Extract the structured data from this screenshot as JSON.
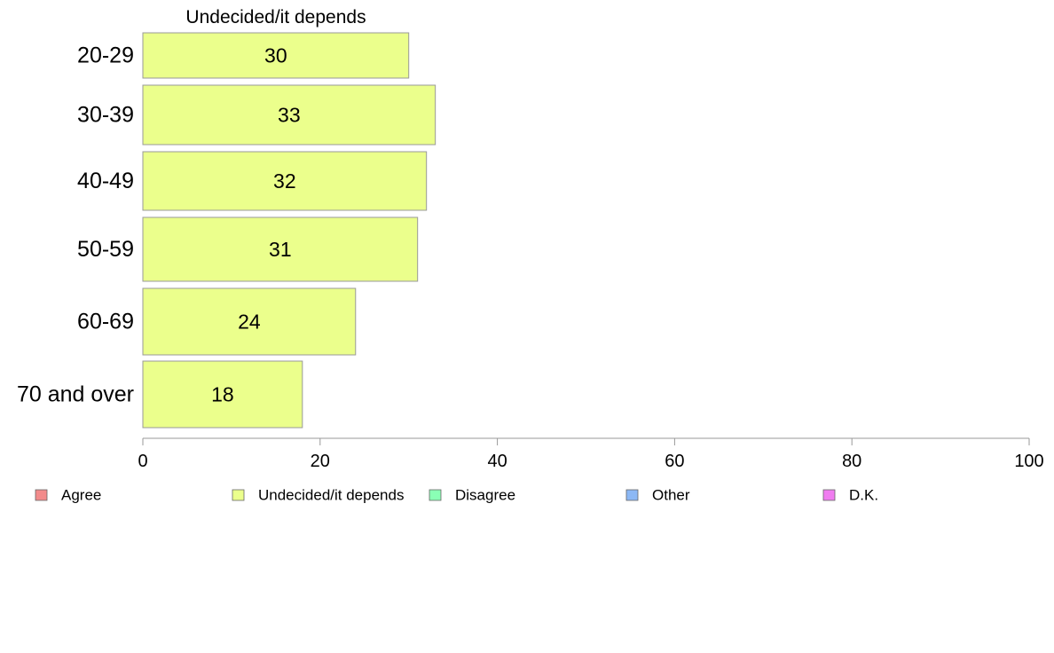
{
  "chart_data": {
    "type": "bar",
    "orientation": "horizontal",
    "title": "Undecided/it depends",
    "categories": [
      "20-29",
      "30-39",
      "40-49",
      "50-59",
      "60-69",
      "70 and over"
    ],
    "series": [
      {
        "name": "Undecided/it depends",
        "values": [
          30,
          33,
          32,
          31,
          24,
          18
        ]
      }
    ],
    "value_labels": [
      "30",
      "33",
      "32",
      "31",
      "24",
      "18"
    ],
    "xlim": [
      0,
      100
    ],
    "x_ticks": [
      "0",
      "20",
      "40",
      "60",
      "80",
      "100"
    ],
    "grid": false,
    "legend_position": "bottom",
    "legend": [
      {
        "label": "Agree",
        "color": "#f28b8b"
      },
      {
        "label": "Undecided/it depends",
        "color": "#ebff8c"
      },
      {
        "label": "Disagree",
        "color": "#8affb5"
      },
      {
        "label": "Other",
        "color": "#8cb8f5"
      },
      {
        "label": "D.K.",
        "color": "#f07cf0"
      }
    ],
    "bar_color": "#ebff8c",
    "bar_stroke": "#999999"
  }
}
